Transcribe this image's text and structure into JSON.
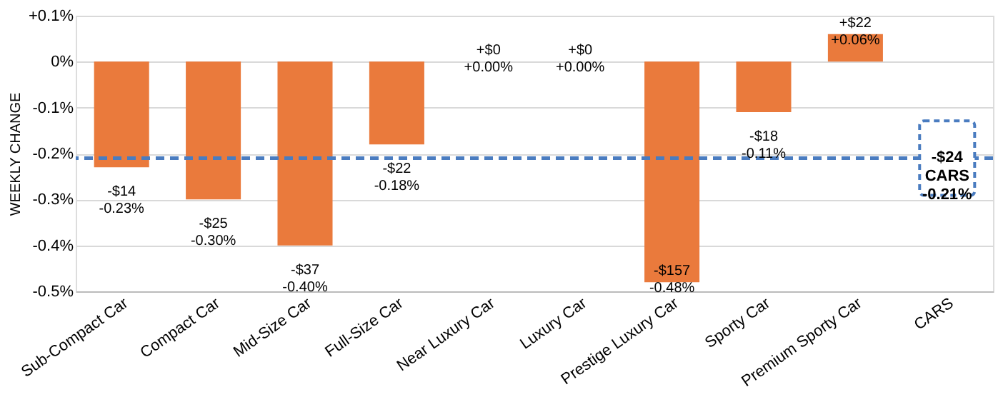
{
  "chart_data": {
    "type": "bar",
    "ylabel": "WEEKLY CHANGE",
    "categories": [
      "Sub-Compact Car",
      "Compact Car",
      "Mid-Size Car",
      "Full-Size Car",
      "Near Luxury Car",
      "Luxury Car",
      "Prestige Luxury Car",
      "Sporty Car",
      "Premium Sporty Car",
      "CARS"
    ],
    "values": [
      -0.23,
      -0.3,
      -0.4,
      -0.18,
      0.0,
      0.0,
      -0.48,
      -0.11,
      0.06,
      null
    ],
    "value_labels": [
      "-$14\n-0.23%",
      "-$25\n-0.30%",
      "-$37\n-0.40%",
      "-$22\n-0.18%",
      "+$0\n+0.00%",
      "+$0\n+0.00%",
      "-$157\n-0.48%",
      "-$18\n-0.11%",
      "+$22\n+0.06%",
      null
    ],
    "color": "#ea7a3c",
    "ylim": [
      -0.5,
      0.1
    ],
    "yticks": [
      {
        "value": 0.1,
        "label": "+0.1%"
      },
      {
        "value": 0,
        "label": "0%"
      },
      {
        "value": -0.1,
        "label": "-0.1%"
      },
      {
        "value": -0.2,
        "label": "-0.2%"
      },
      {
        "value": -0.3,
        "label": "-0.3%"
      },
      {
        "value": -0.4,
        "label": "-0.4%"
      },
      {
        "value": -0.5,
        "label": "-0.5%"
      }
    ],
    "grid": "y",
    "ref_lines": [
      {
        "axis": "y",
        "value": -0.21,
        "label": "-$24\nCARS\n-0.21%",
        "color": "#4a7cc0",
        "line_style": "dashed"
      }
    ]
  }
}
